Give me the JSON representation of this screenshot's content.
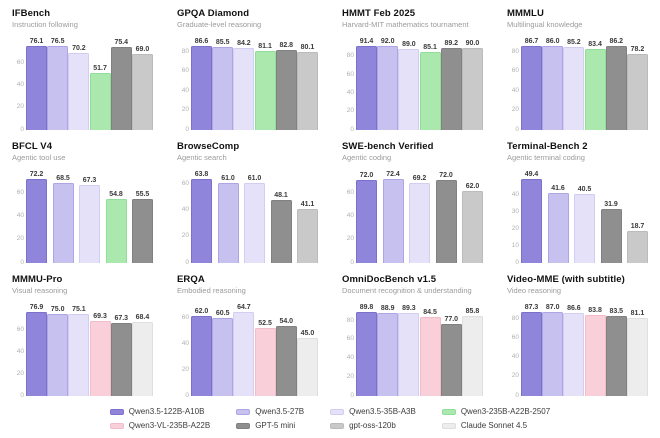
{
  "page": {
    "background": "#ffffff"
  },
  "models": [
    {
      "id": "qwen35-122b",
      "label": "Qwen3.5-122B-A10B",
      "color": "#8f85db",
      "border": "#7b70cb"
    },
    {
      "id": "qwen35-27b",
      "label": "Qwen3.5-27B",
      "color": "#c7c1ef",
      "border": "#aea6e4"
    },
    {
      "id": "qwen35-35b",
      "label": "Qwen3.5-35B-A3B",
      "color": "#e4e1f8",
      "border": "#d2cdf1"
    },
    {
      "id": "qwen3-235b-2507",
      "label": "Qwen3-235B-A22B-2507",
      "color": "#aae8ae",
      "border": "#92dd99"
    },
    {
      "id": "qwen3-vl-235b",
      "label": "Qwen3-VL-235B-A22B",
      "color": "#f9d0d9",
      "border": "#f2bcc9"
    },
    {
      "id": "gpt5-mini",
      "label": "GPT-5 mini",
      "color": "#8f8f8f",
      "border": "#818181"
    },
    {
      "id": "gpt-oss-120b",
      "label": "gpt-oss-120b",
      "color": "#c9c9c9",
      "border": "#bbbbbb"
    },
    {
      "id": "claude-sonnet-45",
      "label": "Claude Sonnet 4.5",
      "color": "#ededed",
      "border": "#dfdfdf"
    }
  ],
  "chart_data": [
    {
      "type": "bar",
      "title": "IFBench",
      "subtitle": "Instruction following",
      "ylim": [
        0,
        78
      ],
      "yticks": [
        0,
        20,
        40,
        60
      ],
      "grid": false,
      "legend_position": "bottom",
      "series": [
        {
          "model": "qwen35-122b",
          "value": 76.1
        },
        {
          "model": "qwen35-27b",
          "value": 76.5
        },
        {
          "model": "qwen35-35b",
          "value": 70.2
        },
        {
          "model": "qwen3-235b-2507",
          "value": 51.7
        },
        {
          "model": "gpt5-mini",
          "value": 75.4
        },
        {
          "model": "gpt-oss-120b",
          "value": 69.0
        }
      ]
    },
    {
      "type": "bar",
      "title": "GPQA Diamond",
      "subtitle": "Graduate-level reasoning",
      "ylim": [
        0,
        88.5
      ],
      "yticks": [
        0,
        20,
        40,
        60,
        80
      ],
      "grid": false,
      "legend_position": "bottom",
      "series": [
        {
          "model": "qwen35-122b",
          "value": 86.6
        },
        {
          "model": "qwen35-27b",
          "value": 85.5
        },
        {
          "model": "qwen35-35b",
          "value": 84.2
        },
        {
          "model": "qwen3-235b-2507",
          "value": 81.1
        },
        {
          "model": "gpt5-mini",
          "value": 82.8
        },
        {
          "model": "gpt-oss-120b",
          "value": 80.1
        }
      ]
    },
    {
      "type": "bar",
      "title": "HMMT Feb 2025",
      "subtitle": "Harvard-MIT mathematics tournament",
      "ylim": [
        0,
        94
      ],
      "yticks": [
        0,
        20,
        40,
        60,
        80
      ],
      "grid": false,
      "legend_position": "bottom",
      "series": [
        {
          "model": "qwen35-122b",
          "value": 91.4
        },
        {
          "model": "qwen35-27b",
          "value": 92.0
        },
        {
          "model": "qwen35-35b",
          "value": 89.0
        },
        {
          "model": "qwen3-235b-2507",
          "value": 85.1
        },
        {
          "model": "gpt5-mini",
          "value": 89.2
        },
        {
          "model": "gpt-oss-120b",
          "value": 90.0
        }
      ]
    },
    {
      "type": "bar",
      "title": "MMMLU",
      "subtitle": "Multilingual knowledge",
      "ylim": [
        0,
        88.5
      ],
      "yticks": [
        0,
        20,
        40,
        60,
        80
      ],
      "grid": false,
      "legend_position": "bottom",
      "series": [
        {
          "model": "qwen35-122b",
          "value": 86.7
        },
        {
          "model": "qwen35-27b",
          "value": 86.0
        },
        {
          "model": "qwen35-35b",
          "value": 85.2
        },
        {
          "model": "qwen3-235b-2507",
          "value": 83.4
        },
        {
          "model": "gpt5-mini",
          "value": 86.2
        },
        {
          "model": "gpt-oss-120b",
          "value": 78.2
        }
      ]
    },
    {
      "type": "bar",
      "title": "BFCL V4",
      "subtitle": "Agentic tool use",
      "ylim": [
        0,
        74
      ],
      "yticks": [
        0,
        20,
        40,
        60
      ],
      "grid": false,
      "legend_position": "bottom",
      "series": [
        {
          "model": "qwen35-122b",
          "value": 72.2
        },
        {
          "model": "qwen35-27b",
          "value": 68.5
        },
        {
          "model": "qwen35-35b",
          "value": 67.3
        },
        {
          "model": "qwen3-235b-2507",
          "value": 54.8
        },
        {
          "model": "gpt5-mini",
          "value": 55.5
        }
      ]
    },
    {
      "type": "bar",
      "title": "BrowseComp",
      "subtitle": "Agentic search",
      "ylim": [
        0,
        65.5
      ],
      "yticks": [
        0,
        20,
        40,
        60
      ],
      "grid": false,
      "legend_position": "bottom",
      "series": [
        {
          "model": "qwen35-122b",
          "value": 63.8
        },
        {
          "model": "qwen35-27b",
          "value": 61.0
        },
        {
          "model": "qwen35-35b",
          "value": 61.0
        },
        {
          "model": "gpt5-mini",
          "value": 48.1
        },
        {
          "model": "gpt-oss-120b",
          "value": 41.1
        }
      ]
    },
    {
      "type": "bar",
      "title": "SWE-bench Verified",
      "subtitle": "Agentic coding",
      "ylim": [
        0,
        74.5
      ],
      "yticks": [
        0,
        20,
        40,
        60
      ],
      "grid": false,
      "legend_position": "bottom",
      "series": [
        {
          "model": "qwen35-122b",
          "value": 72.0
        },
        {
          "model": "qwen35-27b",
          "value": 72.4
        },
        {
          "model": "qwen35-35b",
          "value": 69.2
        },
        {
          "model": "gpt5-mini",
          "value": 72.0
        },
        {
          "model": "gpt-oss-120b",
          "value": 62.0
        }
      ]
    },
    {
      "type": "bar",
      "title": "Terminal-Bench 2",
      "subtitle": "Agentic terminal coding",
      "ylim": [
        0,
        50.8
      ],
      "yticks": [
        0,
        10,
        20,
        30,
        40
      ],
      "grid": false,
      "legend_position": "bottom",
      "series": [
        {
          "model": "qwen35-122b",
          "value": 49.4
        },
        {
          "model": "qwen35-27b",
          "value": 41.6
        },
        {
          "model": "qwen35-35b",
          "value": 40.5
        },
        {
          "model": "gpt5-mini",
          "value": 31.9
        },
        {
          "model": "gpt-oss-120b",
          "value": 18.7
        }
      ]
    },
    {
      "type": "bar",
      "title": "MMMU-Pro",
      "subtitle": "Visual reasoning",
      "ylim": [
        0,
        79
      ],
      "yticks": [
        0,
        20,
        40,
        60
      ],
      "grid": false,
      "legend_position": "bottom",
      "series": [
        {
          "model": "qwen35-122b",
          "value": 76.9
        },
        {
          "model": "qwen35-27b",
          "value": 75.0
        },
        {
          "model": "qwen35-35b",
          "value": 75.1
        },
        {
          "model": "qwen3-vl-235b",
          "value": 69.3
        },
        {
          "model": "gpt5-mini",
          "value": 67.3
        },
        {
          "model": "claude-sonnet-45",
          "value": 68.4
        }
      ]
    },
    {
      "type": "bar",
      "title": "ERQA",
      "subtitle": "Embodied reasoning",
      "ylim": [
        0,
        66.5
      ],
      "yticks": [
        0,
        20,
        40,
        60
      ],
      "grid": false,
      "legend_position": "bottom",
      "series": [
        {
          "model": "qwen35-122b",
          "value": 62.0
        },
        {
          "model": "qwen35-27b",
          "value": 60.5
        },
        {
          "model": "qwen35-35b",
          "value": 64.7
        },
        {
          "model": "qwen3-vl-235b",
          "value": 52.5
        },
        {
          "model": "gpt5-mini",
          "value": 54.0
        },
        {
          "model": "claude-sonnet-45",
          "value": 45.0
        }
      ]
    },
    {
      "type": "bar",
      "title": "OmniDocBench v1.5",
      "subtitle": "Document recognition & understanding",
      "ylim": [
        0,
        92
      ],
      "yticks": [
        0,
        20,
        40,
        60,
        80
      ],
      "grid": false,
      "legend_position": "bottom",
      "series": [
        {
          "model": "qwen35-122b",
          "value": 89.8
        },
        {
          "model": "qwen35-27b",
          "value": 88.9
        },
        {
          "model": "qwen35-35b",
          "value": 89.3
        },
        {
          "model": "qwen3-vl-235b",
          "value": 84.5
        },
        {
          "model": "gpt5-mini",
          "value": 77.0
        },
        {
          "model": "claude-sonnet-45",
          "value": 85.8
        }
      ]
    },
    {
      "type": "bar",
      "title": "Video-MME (with subtitle)",
      "subtitle": "Video reasoning",
      "ylim": [
        0,
        89.5
      ],
      "yticks": [
        0,
        20,
        40,
        60,
        80
      ],
      "grid": false,
      "legend_position": "bottom",
      "series": [
        {
          "model": "qwen35-122b",
          "value": 87.3
        },
        {
          "model": "qwen35-27b",
          "value": 87.0
        },
        {
          "model": "qwen35-35b",
          "value": 86.6
        },
        {
          "model": "qwen3-vl-235b",
          "value": 83.8
        },
        {
          "model": "gpt5-mini",
          "value": 83.5
        },
        {
          "model": "claude-sonnet-45",
          "value": 81.1
        }
      ]
    }
  ],
  "legend": {
    "rows": [
      [
        "qwen35-122b",
        "qwen35-27b",
        "qwen35-35b",
        "qwen3-235b-2507"
      ],
      [
        "qwen3-vl-235b",
        "gpt5-mini",
        "gpt-oss-120b",
        "claude-sonnet-45"
      ]
    ]
  }
}
